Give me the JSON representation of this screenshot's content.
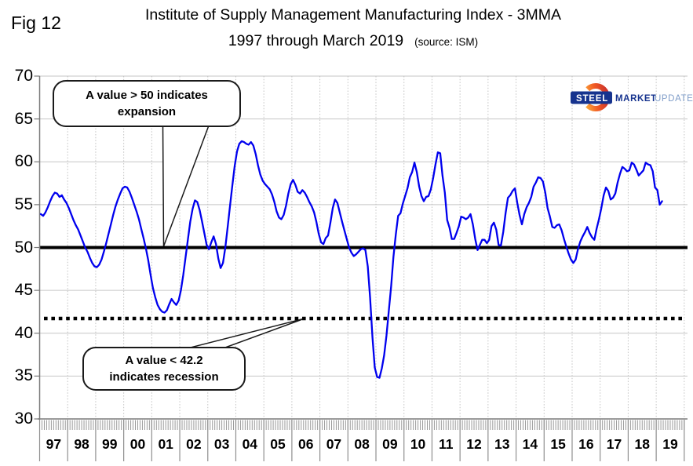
{
  "figure": {
    "fig_label": "Fig 12",
    "title_line1": "Institute of Supply Management Manufacturing Index - 3MMA",
    "title_line2": "1997 through March 2019",
    "source_note": "(source: ISM)"
  },
  "callouts": {
    "expansion": {
      "line1": "A value > 50 indicates",
      "line2": "expansion"
    },
    "recession": {
      "line1": "A value < 42.2",
      "line2": "indicates recession"
    }
  },
  "logo": {
    "steel": "STEEL",
    "market": "MARKET",
    "update": "UPDATE",
    "navy": "#16338e",
    "light_blue": "#7f9dc9",
    "orange_gradient": [
      "#c1272d",
      "#f15a24",
      "#fbb03b"
    ]
  },
  "chart_data": {
    "type": "line",
    "title": "Institute of Supply Management Manufacturing Index - 3MMA, 1997 through March 2019",
    "source": "ISM",
    "frequency": "monthly",
    "x_start": "1997-01",
    "x_end": "2019-03",
    "x_tick_labels": [
      "97",
      "98",
      "99",
      "00",
      "01",
      "02",
      "03",
      "04",
      "05",
      "06",
      "07",
      "08",
      "09",
      "10",
      "11",
      "12",
      "13",
      "14",
      "15",
      "16",
      "17",
      "18",
      "19"
    ],
    "y_ticks": [
      30,
      35,
      40,
      45,
      50,
      55,
      60,
      65,
      70
    ],
    "ylim": [
      30,
      70
    ],
    "grid": true,
    "legend": "none",
    "reference_lines": [
      {
        "value": 50,
        "style": "solid",
        "color": "#000000",
        "meaning": "A value > 50 indicates expansion"
      },
      {
        "value": 42.2,
        "style": "dotted",
        "color": "#000000",
        "meaning": "A value < 42.2 indicates recession"
      }
    ],
    "series": [
      {
        "name": "ISM Manufacturing Index (3-month moving average)",
        "color": "#0000ee",
        "values": [
          53.9,
          53.7,
          54.1,
          54.7,
          55.4,
          56.0,
          56.4,
          56.3,
          55.9,
          56.1,
          55.6,
          55.2,
          54.6,
          53.9,
          53.2,
          52.6,
          52.1,
          51.4,
          50.7,
          50.0,
          49.5,
          48.8,
          48.2,
          47.8,
          47.7,
          48.0,
          48.6,
          49.5,
          50.5,
          51.6,
          52.7,
          53.8,
          54.8,
          55.6,
          56.3,
          56.9,
          57.1,
          57.0,
          56.5,
          55.8,
          55.0,
          54.2,
          53.3,
          52.2,
          51.1,
          49.9,
          48.5,
          46.8,
          45.3,
          44.2,
          43.3,
          42.8,
          42.5,
          42.4,
          42.7,
          43.4,
          44.0,
          43.6,
          43.3,
          43.8,
          45.0,
          46.8,
          48.9,
          51.0,
          53.0,
          54.5,
          55.5,
          55.3,
          54.4,
          53.1,
          51.7,
          50.3,
          49.8,
          50.6,
          51.3,
          50.4,
          48.7,
          47.6,
          48.2,
          50.0,
          52.4,
          54.8,
          57.2,
          59.5,
          61.2,
          62.1,
          62.4,
          62.3,
          62.1,
          62.0,
          62.3,
          61.9,
          60.9,
          59.6,
          58.5,
          57.8,
          57.4,
          57.1,
          56.8,
          56.2,
          55.3,
          54.2,
          53.5,
          53.3,
          53.8,
          54.9,
          56.3,
          57.4,
          57.9,
          57.3,
          56.5,
          56.3,
          56.7,
          56.4,
          55.9,
          55.3,
          54.8,
          54.1,
          53.0,
          51.6,
          50.6,
          50.4,
          51.1,
          51.4,
          52.9,
          54.6,
          55.6,
          55.2,
          54.1,
          53.0,
          52.0,
          51.0,
          50.0,
          49.4,
          49.0,
          49.2,
          49.5,
          49.8,
          49.9,
          49.7,
          47.8,
          44.1,
          39.5,
          36.0,
          34.9,
          34.8,
          35.9,
          37.4,
          39.7,
          42.6,
          45.5,
          48.9,
          51.5,
          53.7,
          54.0,
          55.1,
          56.0,
          56.9,
          58.2,
          58.8,
          59.9,
          58.8,
          57.1,
          56.0,
          55.4,
          55.9,
          56.0,
          56.8,
          58.1,
          59.7,
          61.1,
          61.0,
          58.4,
          56.4,
          53.2,
          52.3,
          51.0,
          51.0,
          51.7,
          52.5,
          53.6,
          53.5,
          53.3,
          53.5,
          53.9,
          52.7,
          51.0,
          49.7,
          50.3,
          50.9,
          50.9,
          50.5,
          50.9,
          52.5,
          52.9,
          52.1,
          50.3,
          50.2,
          51.8,
          54.0,
          55.8,
          56.1,
          56.6,
          56.9,
          55.2,
          53.8,
          52.7,
          53.9,
          54.7,
          55.2,
          55.9,
          57.1,
          57.6,
          58.2,
          58.1,
          57.7,
          56.4,
          54.6,
          53.6,
          52.4,
          52.3,
          52.6,
          52.7,
          52.0,
          51.0,
          50.1,
          49.3,
          48.6,
          48.2,
          48.6,
          49.8,
          50.7,
          51.3,
          51.8,
          52.4,
          51.7,
          51.2,
          50.9,
          52.2,
          53.3,
          54.6,
          56.1,
          57.0,
          56.6,
          55.6,
          55.8,
          56.3,
          57.6,
          58.6,
          59.4,
          59.2,
          58.9,
          59.0,
          59.9,
          59.7,
          59.1,
          58.4,
          58.7,
          59.0,
          59.9,
          59.7,
          59.6,
          58.9,
          57.0,
          56.7,
          55.0,
          55.4
        ]
      }
    ]
  }
}
